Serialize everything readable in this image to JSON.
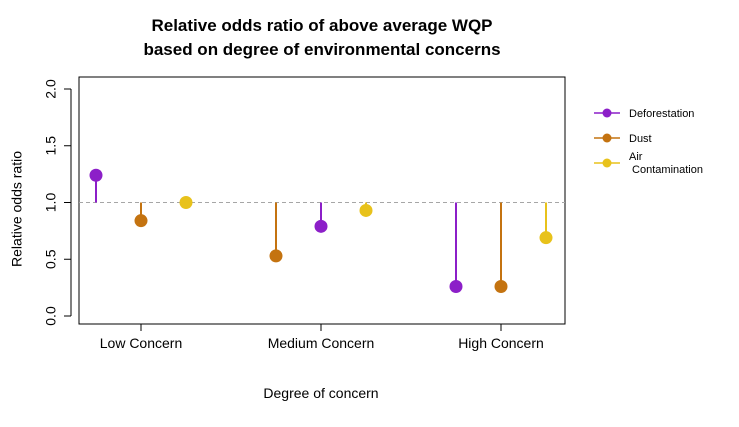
{
  "chart_data": {
    "type": "lollipop",
    "title": [
      "Relative odds ratio of above average WQP",
      "based on degree of environmental concerns"
    ],
    "xlabel": "Degree of concern",
    "ylabel": "Relative odds ratio",
    "ylim": [
      0,
      2
    ],
    "yticks": [
      "0.0",
      "0.5",
      "1.0",
      "1.5",
      "2.0"
    ],
    "baseline": 1.0,
    "categories": [
      "Low Concern",
      "Medium Concern",
      "High Concern"
    ],
    "legend_position": "right",
    "legend": [
      {
        "label": [
          "Deforestation"
        ],
        "color": "#8C1FC8"
      },
      {
        "label": [
          "Dust"
        ],
        "color": "#C47310"
      },
      {
        "label": [
          "Air",
          " Contamination"
        ],
        "color": "#E8C21B"
      }
    ],
    "points": [
      {
        "category": "Low Concern",
        "series": "Deforestation",
        "value": 1.24,
        "color": "#8C1FC8",
        "order": 0
      },
      {
        "category": "Low Concern",
        "series": "Dust",
        "value": 0.84,
        "color": "#C47310",
        "order": 1
      },
      {
        "category": "Low Concern",
        "series": "Air Contamination",
        "value": 1.0,
        "color": "#E8C21B",
        "order": 2
      },
      {
        "category": "Medium Concern",
        "series": "Dust",
        "value": 0.53,
        "color": "#C47310",
        "order": 0
      },
      {
        "category": "Medium Concern",
        "series": "Deforestation",
        "value": 0.79,
        "color": "#8C1FC8",
        "order": 1
      },
      {
        "category": "Medium Concern",
        "series": "Air Contamination",
        "value": 0.93,
        "color": "#E8C21B",
        "order": 2
      },
      {
        "category": "High Concern",
        "series": "Deforestation",
        "value": 0.26,
        "color": "#8C1FC8",
        "order": 0
      },
      {
        "category": "High Concern",
        "series": "Dust",
        "value": 0.26,
        "color": "#C47310",
        "order": 1
      },
      {
        "category": "High Concern",
        "series": "Air Contamination",
        "value": 0.69,
        "color": "#E8C21B",
        "order": 2
      }
    ]
  }
}
